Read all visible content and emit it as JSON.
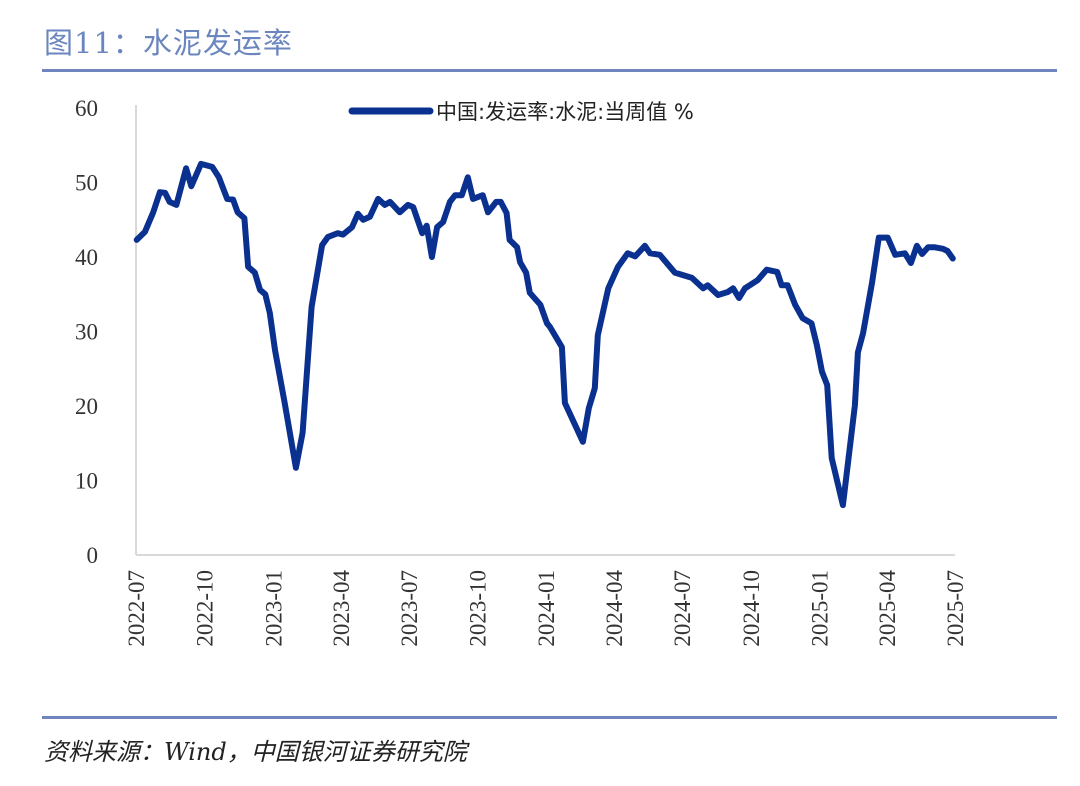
{
  "header": {
    "title": "图11：水泥发运率"
  },
  "footer": {
    "source": "资料来源：Wind，中国银河证券研究院"
  },
  "chart_data": {
    "type": "line",
    "title": "",
    "xlabel": "",
    "ylabel": "",
    "ylim": [
      0,
      60
    ],
    "yticks": [
      "0",
      "10",
      "20",
      "30",
      "40",
      "50",
      "60"
    ],
    "xlim": [
      "2022-07",
      "2025-07"
    ],
    "xticks": [
      "2022-07",
      "2022-10",
      "2023-01",
      "2023-04",
      "2023-07",
      "2023-10",
      "2024-01",
      "2024-04",
      "2024-07",
      "2024-10",
      "2025-01",
      "2025-04",
      "2025-07"
    ],
    "grid": false,
    "legend_position": "top",
    "series": [
      {
        "name": "中国:发运率:水泥:当周值 %",
        "color": "#0a318f",
        "points": [
          [
            "2022-07-02",
            42.3
          ],
          [
            "2022-07-13",
            43.4
          ],
          [
            "2022-07-24",
            46.0
          ],
          [
            "2022-08-02",
            48.7
          ],
          [
            "2022-08-09",
            48.6
          ],
          [
            "2022-08-15",
            47.4
          ],
          [
            "2022-08-24",
            47.0
          ],
          [
            "2022-09-06",
            51.9
          ],
          [
            "2022-09-13",
            49.5
          ],
          [
            "2022-09-26",
            52.5
          ],
          [
            "2022-10-11",
            52.1
          ],
          [
            "2022-10-20",
            50.7
          ],
          [
            "2022-10-31",
            47.8
          ],
          [
            "2022-11-08",
            47.7
          ],
          [
            "2022-11-14",
            46.0
          ],
          [
            "2022-11-23",
            45.2
          ],
          [
            "2022-11-28",
            38.7
          ],
          [
            "2022-12-07",
            37.9
          ],
          [
            "2022-12-14",
            35.6
          ],
          [
            "2022-12-21",
            35.0
          ],
          [
            "2022-12-27",
            32.5
          ],
          [
            "2023-01-03",
            27.5
          ],
          [
            "2023-01-16",
            20.4
          ],
          [
            "2023-01-31",
            11.7
          ],
          [
            "2023-02-09",
            16.4
          ],
          [
            "2023-02-21",
            33.3
          ],
          [
            "2023-03-07",
            41.6
          ],
          [
            "2023-03-15",
            42.7
          ],
          [
            "2023-03-28",
            43.2
          ],
          [
            "2023-04-04",
            43.0
          ],
          [
            "2023-04-16",
            44.0
          ],
          [
            "2023-04-24",
            45.8
          ],
          [
            "2023-05-01",
            45.0
          ],
          [
            "2023-05-10",
            45.4
          ],
          [
            "2023-05-21",
            47.8
          ],
          [
            "2023-05-30",
            47.0
          ],
          [
            "2023-06-06",
            47.4
          ],
          [
            "2023-06-19",
            46.0
          ],
          [
            "2023-06-30",
            47.0
          ],
          [
            "2023-07-07",
            46.7
          ],
          [
            "2023-07-19",
            43.2
          ],
          [
            "2023-07-25",
            44.2
          ],
          [
            "2023-08-01",
            40.0
          ],
          [
            "2023-08-08",
            44.0
          ],
          [
            "2023-08-16",
            44.7
          ],
          [
            "2023-08-25",
            47.4
          ],
          [
            "2023-09-01",
            48.3
          ],
          [
            "2023-09-10",
            48.3
          ],
          [
            "2023-09-18",
            50.7
          ],
          [
            "2023-09-25",
            47.8
          ],
          [
            "2023-10-08",
            48.3
          ],
          [
            "2023-10-15",
            46.0
          ],
          [
            "2023-10-26",
            47.4
          ],
          [
            "2023-11-01",
            47.4
          ],
          [
            "2023-11-09",
            45.9
          ],
          [
            "2023-11-13",
            42.3
          ],
          [
            "2023-11-23",
            41.3
          ],
          [
            "2023-11-27",
            39.3
          ],
          [
            "2023-12-05",
            37.9
          ],
          [
            "2023-12-10",
            35.2
          ],
          [
            "2023-12-24",
            33.6
          ],
          [
            "2024-01-02",
            31.1
          ],
          [
            "2024-01-06",
            30.6
          ],
          [
            "2024-01-22",
            27.9
          ],
          [
            "2024-01-26",
            20.4
          ],
          [
            "2024-02-19",
            15.2
          ],
          [
            "2024-02-27",
            19.7
          ],
          [
            "2024-03-06",
            22.4
          ],
          [
            "2024-03-10",
            29.5
          ],
          [
            "2024-03-24",
            35.8
          ],
          [
            "2024-04-06",
            38.7
          ],
          [
            "2024-04-19",
            40.5
          ],
          [
            "2024-04-29",
            40.1
          ],
          [
            "2024-05-12",
            41.5
          ],
          [
            "2024-05-19",
            40.5
          ],
          [
            "2024-06-01",
            40.3
          ],
          [
            "2024-06-21",
            37.9
          ],
          [
            "2024-07-14",
            37.2
          ],
          [
            "2024-07-29",
            35.8
          ],
          [
            "2024-08-04",
            36.2
          ],
          [
            "2024-08-18",
            34.9
          ],
          [
            "2024-08-31",
            35.3
          ],
          [
            "2024-09-07",
            35.8
          ],
          [
            "2024-09-15",
            34.5
          ],
          [
            "2024-09-23",
            35.8
          ],
          [
            "2024-10-10",
            36.9
          ],
          [
            "2024-10-22",
            38.3
          ],
          [
            "2024-11-05",
            38.0
          ],
          [
            "2024-11-11",
            36.2
          ],
          [
            "2024-11-19",
            36.2
          ],
          [
            "2024-11-29",
            33.6
          ],
          [
            "2024-12-09",
            31.8
          ],
          [
            "2024-12-21",
            31.1
          ],
          [
            "2024-12-28",
            28.2
          ],
          [
            "2025-01-04",
            24.6
          ],
          [
            "2025-01-11",
            22.8
          ],
          [
            "2025-01-17",
            13.0
          ],
          [
            "2025-02-01",
            6.7
          ],
          [
            "2025-02-17",
            20.1
          ],
          [
            "2025-02-21",
            27.2
          ],
          [
            "2025-02-28",
            29.8
          ],
          [
            "2025-03-12",
            36.6
          ],
          [
            "2025-03-21",
            42.6
          ],
          [
            "2025-04-02",
            42.6
          ],
          [
            "2025-04-12",
            40.3
          ],
          [
            "2025-04-25",
            40.5
          ],
          [
            "2025-05-03",
            39.2
          ],
          [
            "2025-05-11",
            41.5
          ],
          [
            "2025-05-18",
            40.4
          ],
          [
            "2025-05-26",
            41.3
          ],
          [
            "2025-06-04",
            41.3
          ],
          [
            "2025-06-15",
            41.1
          ],
          [
            "2025-06-21",
            40.8
          ],
          [
            "2025-06-28",
            39.8
          ]
        ]
      }
    ]
  }
}
